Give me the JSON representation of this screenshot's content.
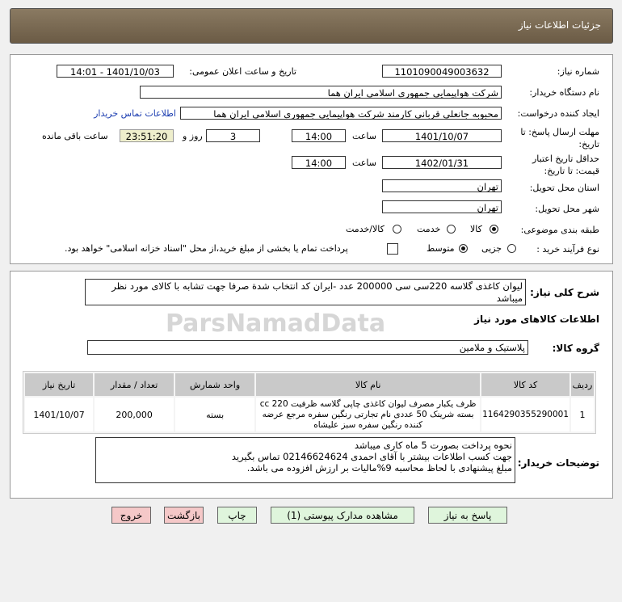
{
  "header": {
    "title": "جزئیات اطلاعات نیاز"
  },
  "form": {
    "need_number_label": "شماره نیاز:",
    "need_number": "1101090049003632",
    "announce_label": "تاریخ و ساعت اعلان عمومی:",
    "announce_value": "1401/10/03 - 14:01",
    "buyer_label": "نام دستگاه خریدار:",
    "buyer": "شرکت هواپیمایی جمهوری اسلامی ایران هما",
    "creator_label": "ایجاد کننده درخواست:",
    "creator": "محبوبه جانعلی قربانی کارمند شرکت هواپیمایی جمهوری اسلامی ایران هما",
    "contact_link": "اطلاعات تماس خریدار",
    "deadline_label": "مهلت ارسال پاسخ: تا تاریخ:",
    "deadline_date": "1401/10/07",
    "time_label": "ساعت",
    "deadline_time": "14:00",
    "days": "3",
    "days_label": "روز و",
    "remaining": "23:51:20",
    "remaining_label": "ساعت باقی مانده",
    "validity_label": "حداقل تاریخ اعتبار قیمت: تا تاریخ:",
    "validity_date": "1402/01/31",
    "validity_time": "14:00",
    "province_label": "استان محل تحویل:",
    "province": "تهران",
    "city_label": "شهر محل تحویل:",
    "city": "تهران",
    "category_label": "طبقه بندی موضوعی:",
    "category_options": [
      "کالا",
      "خدمت",
      "کالا/خدمت"
    ],
    "category_selected": "کالا",
    "process_label": "نوع فرآیند خرید :",
    "process_options": [
      "جزیی",
      "متوسط"
    ],
    "process_selected": "متوسط",
    "payment_note": "پرداخت تمام یا بخشی از مبلغ خرید،از محل \"اسناد خزانه اسلامی\" خواهد بود."
  },
  "details": {
    "summary_label": "شرح کلی نیاز:",
    "summary": "لیوان کاغذی گلاسه 220سی سی 200000 عدد -ایران کد انتخاب شدة صرفا جهت تشابه با کالای مورد نظر میباشد",
    "goods_title": "اطلاعات کالاهای مورد نیاز",
    "group_label": "گروه کالا:",
    "group": "پلاستیک و ملامین",
    "table": {
      "headers": [
        "ردیف",
        "کد کالا",
        "نام کالا",
        "واحد شمارش",
        "تعداد / مقدار",
        "تاریخ نیاز"
      ],
      "rows": [
        [
          "1",
          "1164290355290001",
          "ظرف یکبار مصرف لیوان کاغذی چاپی گلاسه ظرفیت 220 cc بسته شرینک 50 عددی نام تجارتی رنگین سفره مرجع عرضه کننده رنگین سفره سبز علیشاه",
          "بسته",
          "200,000",
          "1401/10/07"
        ]
      ]
    },
    "notes_label": "توضیحات خریدار:",
    "notes": [
      "نحوه پرداخت بصورت 5 ماه کاری میباشد",
      "جهت کسب اطلاعات بیشتر با آقای احمدی  02146624624 تماس بگیرید",
      "مبلغ پیشنهادی با لحاظ محاسبه 9%مالیات بر ارزش افزوده می باشد."
    ]
  },
  "buttons": {
    "reply": "پاسخ به نیاز",
    "attachments": "مشاهده مدارک پیوستی (1)",
    "print": "چاپ",
    "back": "بازگشت",
    "exit": "خروج"
  },
  "watermark": "ParsNamadData",
  "colors": {
    "header": "#6b5b45",
    "link": "#1a3cb0",
    "remaining_bg": "#eeeecc",
    "green_button": "#dff5dc",
    "pink_button": "#f5c8c8"
  }
}
